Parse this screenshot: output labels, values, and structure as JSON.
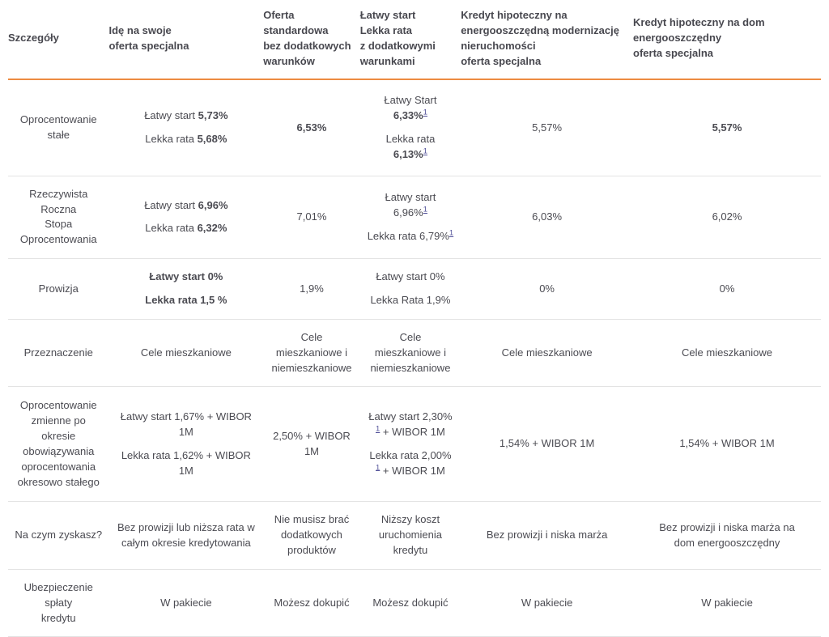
{
  "colors": {
    "accent_orange": "#ED8B41",
    "row_divider": "#e3e3e3",
    "text": "#4b4b52",
    "footnote_link": "#525199"
  },
  "table": {
    "columns": [
      {
        "id": "szczegoly",
        "lines": [
          "Szczegóły"
        ]
      },
      {
        "id": "ide-na-swoje",
        "lines": [
          "Idę na swoje",
          "oferta specjalna"
        ]
      },
      {
        "id": "oferta-standardowa",
        "lines": [
          "Oferta",
          "standardowa",
          "bez dodatkowych",
          "warunków"
        ]
      },
      {
        "id": "latwy-start-lekka-rata",
        "lines": [
          "Łatwy start",
          "Lekka rata",
          "z dodatkowymi",
          "warunkami"
        ]
      },
      {
        "id": "kredyt-modernizacja",
        "lines": [
          "Kredyt hipoteczny na",
          "energooszczędną modernizację",
          "nieruchomości",
          "oferta specjalna"
        ]
      },
      {
        "id": "kredyt-dom-energooszczedny",
        "lines": [
          "Kredyt hipoteczny na dom",
          "energooszczędny",
          "oferta specjalna"
        ]
      }
    ],
    "rows": [
      {
        "id": "oprocentowanie-stale",
        "label_lines": [
          "Oprocentowanie",
          "stałe"
        ],
        "cells": [
          [
            [
              {
                "t": "Łatwy start "
              },
              {
                "t": "5,73%",
                "b": true
              }
            ],
            [
              {
                "t": "Lekka rata "
              },
              {
                "t": "5,68%",
                "b": true
              }
            ]
          ],
          [
            [
              {
                "t": "6,53%",
                "b": true
              }
            ]
          ],
          [
            [
              {
                "t": "Łatwy Start"
              },
              {
                "br": true
              },
              {
                "t": "6,33%",
                "b": true
              },
              {
                "sup": "1"
              }
            ],
            [
              {
                "t": "Lekka rata"
              },
              {
                "br": true
              },
              {
                "t": "6,13%",
                "b": true
              },
              {
                "sup": "1"
              }
            ]
          ],
          [
            [
              {
                "t": "5,57%"
              }
            ]
          ],
          [
            [
              {
                "t": "5,57%",
                "b": true
              }
            ]
          ]
        ]
      },
      {
        "id": "rrso",
        "label_lines": [
          "Rzeczywista Roczna",
          "Stopa",
          "Oprocentowania"
        ],
        "cells": [
          [
            [
              {
                "t": "Łatwy start "
              },
              {
                "t": "6,96%",
                "b": true
              }
            ],
            [
              {
                "t": "Lekka rata "
              },
              {
                "t": "6,32%",
                "b": true
              }
            ]
          ],
          [
            [
              {
                "t": "7,01%"
              }
            ]
          ],
          [
            [
              {
                "t": "Łatwy start"
              },
              {
                "br": true
              },
              {
                "t": "6,96%"
              },
              {
                "sup": "1"
              }
            ],
            [
              {
                "t": "Lekka rata 6,79%"
              },
              {
                "sup": "1"
              }
            ]
          ],
          [
            [
              {
                "t": "6,03%"
              }
            ]
          ],
          [
            [
              {
                "t": "6,02%"
              }
            ]
          ]
        ]
      },
      {
        "id": "prowizja",
        "label_lines": [
          "Prowizja"
        ],
        "cells": [
          [
            [
              {
                "t": "Łatwy start 0%",
                "b": true
              }
            ],
            [
              {
                "t": "Lekka rata 1,5 %",
                "b": true
              }
            ]
          ],
          [
            [
              {
                "t": "1,9%"
              }
            ]
          ],
          [
            [
              {
                "t": "Łatwy start 0%"
              }
            ],
            [
              {
                "t": "Lekka Rata 1,9%"
              }
            ]
          ],
          [
            [
              {
                "t": "0%"
              }
            ]
          ],
          [
            [
              {
                "t": "0%"
              }
            ]
          ]
        ]
      },
      {
        "id": "przeznaczenie",
        "label_lines": [
          "Przeznaczenie"
        ],
        "cells": [
          [
            [
              {
                "t": "Cele mieszkaniowe"
              }
            ]
          ],
          [
            [
              {
                "t": "Cele"
              },
              {
                "br": true
              },
              {
                "t": "mieszkaniowe i"
              },
              {
                "br": true
              },
              {
                "t": "niemieszkaniowe"
              }
            ]
          ],
          [
            [
              {
                "t": "Cele"
              },
              {
                "br": true
              },
              {
                "t": "mieszkaniowe i"
              },
              {
                "br": true
              },
              {
                "t": "niemieszkaniowe"
              }
            ]
          ],
          [
            [
              {
                "t": "Cele mieszkaniowe"
              }
            ]
          ],
          [
            [
              {
                "t": "Cele mieszkaniowe"
              }
            ]
          ]
        ]
      },
      {
        "id": "oprocentowanie-zmienne",
        "label_lines": [
          "Oprocentowanie",
          "zmienne po okresie",
          "obowiązywania",
          "oprocentowania",
          "okresowo stałego"
        ],
        "cells": [
          [
            [
              {
                "t": "Łatwy start 1,67% + WIBOR"
              },
              {
                "br": true
              },
              {
                "t": "1M"
              }
            ],
            [
              {
                "t": "Lekka rata 1,62% + WIBOR 1M"
              }
            ]
          ],
          [
            [
              {
                "t": "2,50% + WIBOR"
              },
              {
                "br": true
              },
              {
                "t": "1M"
              }
            ]
          ],
          [
            [
              {
                "t": "Łatwy start 2,30%"
              },
              {
                "br": true
              },
              {
                "sup": "1"
              },
              {
                "t": " + WIBOR 1M"
              }
            ],
            [
              {
                "t": "Lekka rata 2,00%"
              },
              {
                "br": true
              },
              {
                "sup": "1"
              },
              {
                "t": " + WIBOR 1M"
              }
            ]
          ],
          [
            [
              {
                "t": "1,54% + WIBOR 1M"
              }
            ]
          ],
          [
            [
              {
                "t": "1,54% + WIBOR 1M"
              }
            ]
          ]
        ]
      },
      {
        "id": "na-czym-zyskasz",
        "label_lines": [
          "Na czym zyskasz?"
        ],
        "cells": [
          [
            [
              {
                "t": "Bez prowizji lub niższa rata w"
              },
              {
                "br": true
              },
              {
                "t": "całym okresie kredytowania"
              }
            ]
          ],
          [
            [
              {
                "t": "Nie musisz brać"
              },
              {
                "br": true
              },
              {
                "t": "dodatkowych"
              },
              {
                "br": true
              },
              {
                "t": "produktów"
              }
            ]
          ],
          [
            [
              {
                "t": "Niższy koszt"
              },
              {
                "br": true
              },
              {
                "t": "uruchomienia"
              },
              {
                "br": true
              },
              {
                "t": "kredytu"
              }
            ]
          ],
          [
            [
              {
                "t": "Bez prowizji i niska marża"
              }
            ]
          ],
          [
            [
              {
                "t": "Bez prowizji i niska marża na"
              },
              {
                "br": true
              },
              {
                "t": "dom energooszczędny"
              }
            ]
          ]
        ]
      },
      {
        "id": "ubezpieczenie",
        "label_lines": [
          "Ubezpieczenie spłaty",
          "kredytu"
        ],
        "cells": [
          [
            [
              {
                "t": "W pakiecie"
              }
            ]
          ],
          [
            [
              {
                "t": "Możesz dokupić"
              }
            ]
          ],
          [
            [
              {
                "t": "Możesz dokupić"
              }
            ]
          ],
          [
            [
              {
                "t": "W pakiecie"
              }
            ]
          ],
          [
            [
              {
                "t": "W pakiecie"
              }
            ]
          ]
        ]
      }
    ]
  }
}
